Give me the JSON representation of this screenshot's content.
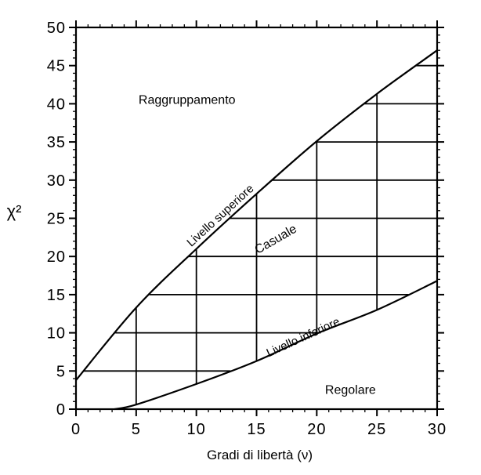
{
  "chart_data": {
    "type": "line",
    "title": "",
    "xlabel": "Gradi di libertà (ν)",
    "ylabel": "χ²",
    "xlim": [
      0,
      30
    ],
    "ylim": [
      0,
      50
    ],
    "x_ticks": [
      "0",
      "5",
      "10",
      "15",
      "20",
      "25",
      "30"
    ],
    "y_ticks": [
      "0",
      "5",
      "10",
      "15",
      "20",
      "25",
      "30",
      "35",
      "40",
      "45",
      "50"
    ],
    "grid": "inside-band",
    "series": [
      {
        "name": "Livello superiore",
        "x": [
          0,
          5,
          10,
          15,
          20,
          25,
          30
        ],
        "y": [
          3.8,
          13.3,
          21.0,
          28.2,
          35.1,
          41.3,
          47.0
        ]
      },
      {
        "name": "Livello inferiore",
        "x": [
          3.2,
          5,
          10,
          15,
          20,
          25,
          30
        ],
        "y": [
          0,
          0.6,
          3.3,
          6.3,
          9.9,
          13.0,
          16.8
        ]
      }
    ],
    "region_labels": [
      "Raggruppamento",
      "Casuale",
      "Regolare"
    ]
  }
}
